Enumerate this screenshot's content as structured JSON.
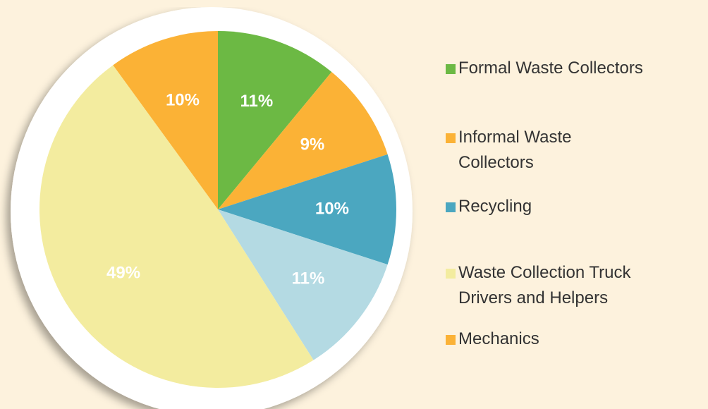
{
  "chart_data": {
    "type": "pie",
    "categories": [
      "Formal Waste Collectors",
      "Informal Waste Collectors",
      "Recycling",
      null,
      "Waste Collection Truck Drivers and Helpers",
      "Mechanics"
    ],
    "values": [
      11,
      9,
      10,
      11,
      49,
      10
    ],
    "value_labels": [
      "11%",
      "9%",
      "10%",
      "11%",
      "49%",
      "10%"
    ],
    "colors": [
      "#6cb944",
      "#fbb236",
      "#4ba7c0",
      "#b4dae3",
      "#f3ec9f",
      "#fbb236"
    ]
  }
}
